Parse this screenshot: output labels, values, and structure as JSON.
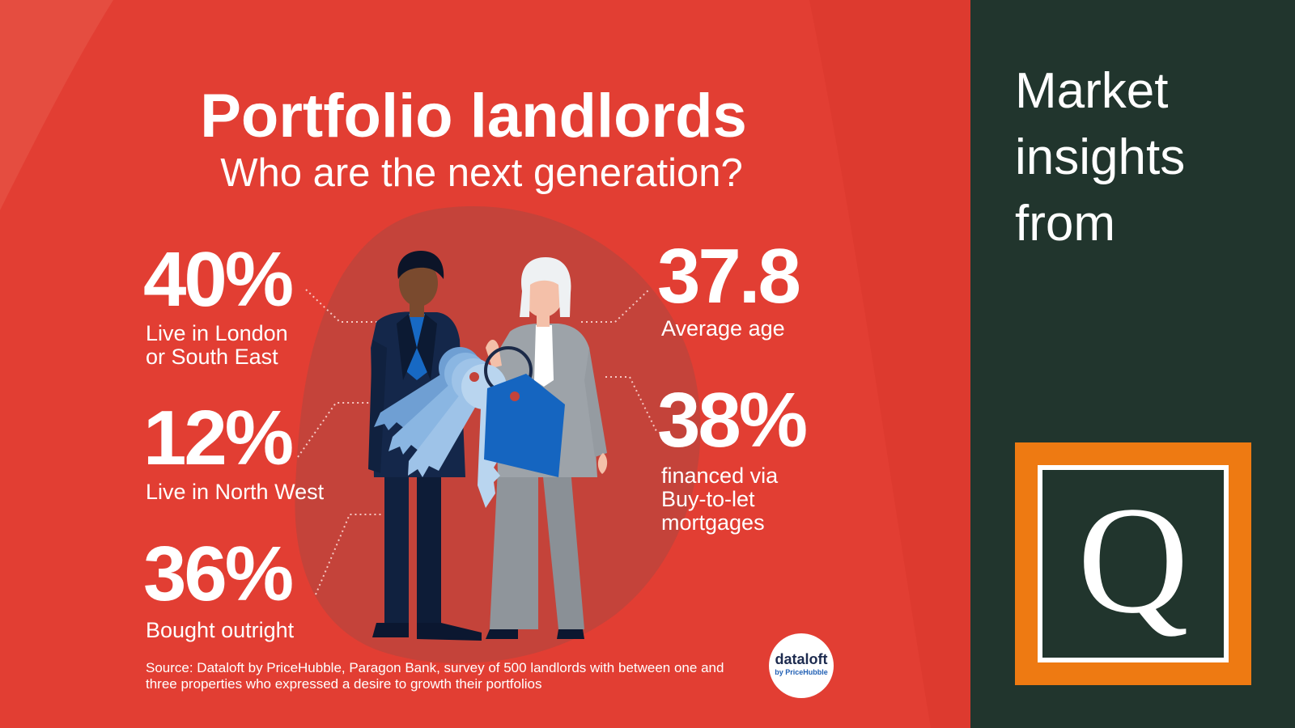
{
  "infographic": {
    "title": "Portfolio landlords",
    "subtitle": "Who are the next generation?",
    "stats": {
      "london": {
        "value": "40%",
        "label": "Live in London\nor South East"
      },
      "north_west": {
        "value": "12%",
        "label": "Live in North West"
      },
      "outright": {
        "value": "36%",
        "label": "Bought outright"
      },
      "age": {
        "value": "37.8",
        "label": "Average age"
      },
      "financed": {
        "value": "38%",
        "label": "financed via\nBuy-to-let\nmortgages"
      }
    },
    "source": "Source: Dataloft by PriceHubble, Paragon Bank, survey of 500 landlords with between one and three properties who expressed a desire to growth their portfolios",
    "badge": {
      "name": "dataloft",
      "sub": "by PriceHubble"
    }
  },
  "sidebar": {
    "heading": "Market\ninsights\nfrom",
    "logo_letter": "Q"
  },
  "colors": {
    "red_background": "#e23e33",
    "dark_green": "#21352d",
    "orange": "#ee7a12",
    "key_blue": "#9ec3e8",
    "tag_blue": "#1565c0"
  },
  "icons": {
    "illustration": "two-landlords-with-keys-illustration",
    "badge": "dataloft-logo",
    "sidebar_logo": "q-logo"
  }
}
